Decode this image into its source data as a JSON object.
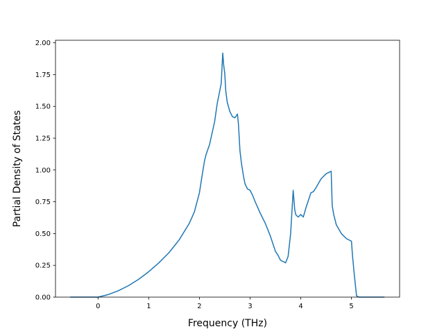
{
  "chart_data": {
    "type": "line",
    "title": "",
    "xlabel": "Frequency (THz)",
    "ylabel": "Partial Density of States",
    "xlim": [
      -0.84,
      5.95
    ],
    "ylim": [
      0.0,
      2.02
    ],
    "x_ticks": [
      0,
      1,
      2,
      3,
      4,
      5
    ],
    "x_tick_labels": [
      "0",
      "1",
      "2",
      "3",
      "4",
      "5"
    ],
    "y_ticks": [
      0.0,
      0.25,
      0.5,
      0.75,
      1.0,
      1.25,
      1.5,
      1.75,
      2.0
    ],
    "y_tick_labels": [
      "0.00",
      "0.25",
      "0.50",
      "0.75",
      "1.00",
      "1.25",
      "1.50",
      "1.75",
      "2.00"
    ],
    "grid": false,
    "legend": "none",
    "series": [
      {
        "color": "#1f77b4",
        "x": [
          -0.54,
          -0.2,
          0.0,
          0.2,
          0.4,
          0.6,
          0.8,
          1.0,
          1.2,
          1.4,
          1.6,
          1.8,
          1.9,
          2.0,
          2.05,
          2.1,
          2.13,
          2.2,
          2.3,
          2.35,
          2.4,
          2.43,
          2.46,
          2.48,
          2.5,
          2.52,
          2.55,
          2.6,
          2.65,
          2.7,
          2.75,
          2.77,
          2.8,
          2.83,
          2.87,
          2.9,
          2.95,
          3.0,
          3.05,
          3.1,
          3.2,
          3.3,
          3.4,
          3.5,
          3.55,
          3.6,
          3.7,
          3.75,
          3.8,
          3.85,
          3.88,
          3.9,
          3.92,
          3.95,
          4.0,
          4.05,
          4.1,
          4.15,
          4.2,
          4.25,
          4.3,
          4.4,
          4.5,
          4.6,
          4.62,
          4.65,
          4.7,
          4.8,
          4.9,
          5.0,
          5.02,
          5.05,
          5.1,
          5.15,
          5.3,
          5.45,
          5.64
        ],
        "y": [
          0.0,
          0.0,
          0.0,
          0.02,
          0.05,
          0.09,
          0.14,
          0.2,
          0.27,
          0.35,
          0.45,
          0.58,
          0.67,
          0.82,
          0.95,
          1.07,
          1.12,
          1.2,
          1.38,
          1.52,
          1.62,
          1.68,
          1.92,
          1.82,
          1.76,
          1.62,
          1.53,
          1.46,
          1.42,
          1.41,
          1.44,
          1.36,
          1.15,
          1.05,
          0.95,
          0.89,
          0.85,
          0.84,
          0.8,
          0.75,
          0.66,
          0.58,
          0.48,
          0.36,
          0.33,
          0.29,
          0.27,
          0.32,
          0.5,
          0.84,
          0.69,
          0.65,
          0.64,
          0.63,
          0.65,
          0.63,
          0.7,
          0.76,
          0.82,
          0.83,
          0.86,
          0.93,
          0.97,
          0.99,
          0.72,
          0.65,
          0.57,
          0.5,
          0.46,
          0.44,
          0.33,
          0.2,
          0.01,
          0.0,
          0.0,
          0.0,
          0.0
        ]
      }
    ]
  }
}
